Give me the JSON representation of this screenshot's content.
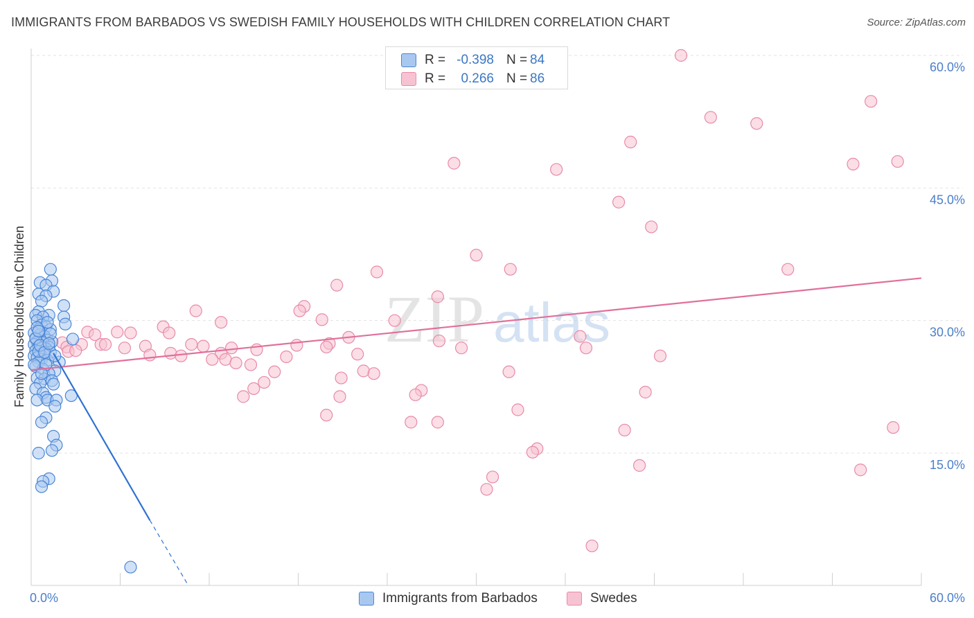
{
  "title": "IMMIGRANTS FROM BARBADOS VS SWEDISH FAMILY HOUSEHOLDS WITH CHILDREN CORRELATION CHART",
  "source": "Source: ZipAtlas.com",
  "watermark": {
    "zip": "ZIP",
    "atlas": "atlas"
  },
  "legend": {
    "rows": [
      {
        "r_label": "R =",
        "r_value": "-0.398",
        "n_label": "N =",
        "n_value": "84"
      },
      {
        "r_label": "R =",
        "r_value": "0.266",
        "n_label": "N =",
        "n_value": "86"
      }
    ]
  },
  "bottom_legend": {
    "series1": "Immigrants from Barbados",
    "series2": "Swedes"
  },
  "colors": {
    "blue_fill": "#a9c8f0",
    "blue_stroke": "#4a86d6",
    "blue_line": "#2e72d2",
    "pink_fill": "#f7c3d2",
    "pink_stroke": "#e88aa8",
    "pink_line": "#e0709a",
    "tick_text": "#4a7fc9",
    "grid": "#e3e3e3"
  },
  "chart_data": {
    "type": "scatter",
    "ylabel": "Family Households with Children",
    "xlabel": "",
    "xlim": [
      0,
      60
    ],
    "ylim": [
      0,
      62
    ],
    "x_tick_labels": {
      "left": "0.0%",
      "right": "60.0%"
    },
    "y_ticks": [
      {
        "value": 15,
        "label": "15.0%"
      },
      {
        "value": 30,
        "label": "30.0%"
      },
      {
        "value": 45,
        "label": "45.0%"
      },
      {
        "value": 60,
        "label": "60.0%"
      }
    ],
    "series": [
      {
        "name": "Immigrants from Barbados",
        "color_key": "blue",
        "points": [
          [
            1.3,
            35.8
          ],
          [
            0.6,
            34.3
          ],
          [
            1.4,
            34.5
          ],
          [
            1.0,
            34.0
          ],
          [
            1.5,
            33.3
          ],
          [
            0.5,
            33.0
          ],
          [
            1.0,
            32.8
          ],
          [
            0.7,
            32.2
          ],
          [
            2.2,
            31.7
          ],
          [
            0.5,
            31.0
          ],
          [
            0.3,
            30.6
          ],
          [
            1.2,
            30.6
          ],
          [
            0.8,
            30.4
          ],
          [
            2.2,
            30.4
          ],
          [
            0.4,
            30.0
          ],
          [
            2.3,
            29.6
          ],
          [
            0.7,
            29.5
          ],
          [
            1.0,
            29.3
          ],
          [
            1.3,
            29.0
          ],
          [
            0.5,
            29.0
          ],
          [
            0.2,
            28.6
          ],
          [
            0.6,
            28.4
          ],
          [
            0.9,
            28.2
          ],
          [
            0.3,
            27.9
          ],
          [
            1.1,
            27.8
          ],
          [
            0.4,
            27.6
          ],
          [
            1.4,
            27.6
          ],
          [
            0.8,
            27.5
          ],
          [
            0.2,
            27.3
          ],
          [
            0.5,
            27.1
          ],
          [
            1.2,
            27.0
          ],
          [
            0.7,
            26.9
          ],
          [
            1.0,
            26.8
          ],
          [
            0.3,
            26.6
          ],
          [
            1.3,
            26.4
          ],
          [
            0.6,
            26.2
          ],
          [
            0.9,
            26.1
          ],
          [
            0.2,
            26.0
          ],
          [
            0.4,
            25.8
          ],
          [
            0.7,
            25.6
          ],
          [
            1.1,
            25.5
          ],
          [
            0.5,
            25.3
          ],
          [
            1.9,
            25.3
          ],
          [
            0.3,
            24.8
          ],
          [
            0.8,
            24.5
          ],
          [
            1.6,
            24.3
          ],
          [
            2.8,
            27.9
          ],
          [
            1.2,
            24.0
          ],
          [
            0.4,
            23.5
          ],
          [
            0.9,
            23.4
          ],
          [
            1.4,
            23.2
          ],
          [
            0.6,
            22.9
          ],
          [
            1.5,
            22.8
          ],
          [
            0.3,
            22.3
          ],
          [
            0.8,
            21.8
          ],
          [
            2.7,
            21.5
          ],
          [
            1.0,
            21.3
          ],
          [
            0.4,
            21.0
          ],
          [
            1.1,
            21.0
          ],
          [
            1.7,
            21.0
          ],
          [
            1.6,
            20.3
          ],
          [
            1.0,
            19.0
          ],
          [
            0.7,
            18.5
          ],
          [
            1.5,
            16.9
          ],
          [
            1.7,
            15.9
          ],
          [
            1.4,
            15.3
          ],
          [
            0.5,
            15.0
          ],
          [
            1.2,
            12.1
          ],
          [
            0.8,
            11.8
          ],
          [
            0.7,
            11.2
          ],
          [
            6.7,
            2.1
          ],
          [
            0.5,
            26.5
          ],
          [
            0.3,
            28.0
          ],
          [
            1.0,
            25.0
          ],
          [
            0.6,
            27.2
          ],
          [
            1.3,
            28.5
          ],
          [
            0.2,
            25.0
          ],
          [
            1.1,
            29.8
          ],
          [
            0.9,
            26.4
          ],
          [
            0.4,
            29.2
          ],
          [
            1.6,
            26.0
          ],
          [
            0.7,
            24.0
          ],
          [
            1.2,
            27.4
          ],
          [
            0.5,
            28.8
          ]
        ],
        "trendline": {
          "x": [
            1.5,
            8.0
          ],
          "y": [
            26.3,
            7.4
          ]
        },
        "trendline_dashed": {
          "x": [
            8.0,
            10.6
          ],
          "y": [
            7.4,
            0
          ]
        }
      },
      {
        "name": "Swedes",
        "color_key": "pink",
        "points": [
          [
            43.8,
            60.0
          ],
          [
            56.6,
            54.8
          ],
          [
            45.8,
            53.0
          ],
          [
            48.9,
            52.3
          ],
          [
            40.4,
            50.2
          ],
          [
            28.5,
            47.8
          ],
          [
            55.4,
            47.7
          ],
          [
            58.4,
            48.0
          ],
          [
            35.4,
            47.1
          ],
          [
            39.6,
            43.4
          ],
          [
            41.8,
            40.6
          ],
          [
            30.0,
            37.4
          ],
          [
            32.3,
            35.8
          ],
          [
            51.0,
            35.8
          ],
          [
            23.3,
            35.5
          ],
          [
            20.6,
            34.0
          ],
          [
            18.4,
            31.6
          ],
          [
            27.4,
            32.7
          ],
          [
            18.1,
            31.1
          ],
          [
            11.1,
            31.1
          ],
          [
            19.6,
            30.1
          ],
          [
            24.5,
            30.0
          ],
          [
            12.8,
            29.8
          ],
          [
            8.9,
            29.3
          ],
          [
            3.8,
            28.7
          ],
          [
            5.8,
            28.7
          ],
          [
            6.7,
            28.6
          ],
          [
            9.3,
            28.6
          ],
          [
            4.3,
            28.4
          ],
          [
            21.4,
            28.1
          ],
          [
            37.0,
            28.2
          ],
          [
            2.1,
            27.5
          ],
          [
            3.4,
            27.3
          ],
          [
            4.7,
            27.3
          ],
          [
            2.4,
            27.0
          ],
          [
            5.0,
            27.3
          ],
          [
            10.8,
            27.3
          ],
          [
            11.6,
            27.1
          ],
          [
            13.5,
            26.9
          ],
          [
            7.7,
            27.1
          ],
          [
            6.3,
            26.9
          ],
          [
            20.1,
            27.4
          ],
          [
            27.5,
            27.7
          ],
          [
            29.0,
            26.9
          ],
          [
            37.4,
            26.9
          ],
          [
            12.8,
            26.3
          ],
          [
            15.2,
            26.7
          ],
          [
            9.4,
            26.3
          ],
          [
            10.1,
            26.0
          ],
          [
            17.2,
            25.9
          ],
          [
            12.2,
            25.6
          ],
          [
            13.1,
            25.6
          ],
          [
            8.0,
            26.1
          ],
          [
            13.8,
            25.2
          ],
          [
            14.8,
            25.0
          ],
          [
            22.0,
            26.2
          ],
          [
            2.5,
            26.5
          ],
          [
            32.2,
            24.2
          ],
          [
            42.4,
            26.0
          ],
          [
            22.4,
            24.3
          ],
          [
            19.9,
            27.0
          ],
          [
            20.9,
            23.5
          ],
          [
            23.1,
            24.0
          ],
          [
            16.4,
            24.2
          ],
          [
            15.7,
            23.0
          ],
          [
            15.0,
            22.3
          ],
          [
            26.3,
            22.1
          ],
          [
            25.9,
            21.6
          ],
          [
            14.3,
            21.4
          ],
          [
            20.8,
            21.4
          ],
          [
            41.4,
            21.9
          ],
          [
            32.8,
            19.9
          ],
          [
            19.9,
            19.3
          ],
          [
            25.6,
            18.5
          ],
          [
            27.4,
            18.5
          ],
          [
            40.0,
            17.6
          ],
          [
            58.1,
            17.9
          ],
          [
            34.1,
            15.5
          ],
          [
            33.8,
            15.1
          ],
          [
            41.0,
            13.6
          ],
          [
            55.9,
            13.1
          ],
          [
            31.1,
            12.3
          ],
          [
            30.7,
            10.9
          ],
          [
            37.8,
            4.5
          ],
          [
            3.0,
            26.6
          ],
          [
            17.9,
            27.2
          ]
        ],
        "trendline": {
          "x": [
            0,
            60
          ],
          "y": [
            24.4,
            34.8
          ]
        }
      }
    ]
  }
}
